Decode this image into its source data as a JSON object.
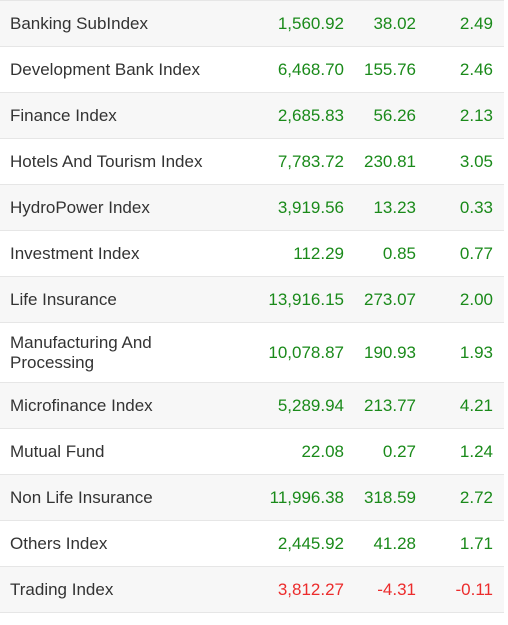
{
  "colors": {
    "positive": "#1a8a1a",
    "negative": "#ec2c2c",
    "row_alt_bg": "#f7f7f7",
    "text": "#333333"
  },
  "indices": [
    {
      "name": "Banking SubIndex",
      "value": "1,560.92",
      "change": "38.02",
      "percent": "2.49",
      "direction": "up"
    },
    {
      "name": "Development Bank Index",
      "value": "6,468.70",
      "change": "155.76",
      "percent": "2.46",
      "direction": "up"
    },
    {
      "name": "Finance Index",
      "value": "2,685.83",
      "change": "56.26",
      "percent": "2.13",
      "direction": "up"
    },
    {
      "name": "Hotels And Tourism Index",
      "value": "7,783.72",
      "change": "230.81",
      "percent": "3.05",
      "direction": "up"
    },
    {
      "name": "HydroPower Index",
      "value": "3,919.56",
      "change": "13.23",
      "percent": "0.33",
      "direction": "up"
    },
    {
      "name": "Investment Index",
      "value": "112.29",
      "change": "0.85",
      "percent": "0.77",
      "direction": "up"
    },
    {
      "name": "Life Insurance",
      "value": "13,916.15",
      "change": "273.07",
      "percent": "2.00",
      "direction": "up"
    },
    {
      "name": "Manufacturing And Processing",
      "name_lines": [
        "Manufacturing And",
        "Processing"
      ],
      "value": "10,078.87",
      "change": "190.93",
      "percent": "1.93",
      "direction": "up"
    },
    {
      "name": "Microfinance Index",
      "value": "5,289.94",
      "change": "213.77",
      "percent": "4.21",
      "direction": "up"
    },
    {
      "name": "Mutual Fund",
      "value": "22.08",
      "change": "0.27",
      "percent": "1.24",
      "direction": "up"
    },
    {
      "name": "Non Life Insurance",
      "value": "11,996.38",
      "change": "318.59",
      "percent": "2.72",
      "direction": "up"
    },
    {
      "name": "Others Index",
      "value": "2,445.92",
      "change": "41.28",
      "percent": "1.71",
      "direction": "up"
    },
    {
      "name": "Trading Index",
      "value": "3,812.27",
      "change": "-4.31",
      "percent": "-0.11",
      "direction": "down"
    }
  ]
}
